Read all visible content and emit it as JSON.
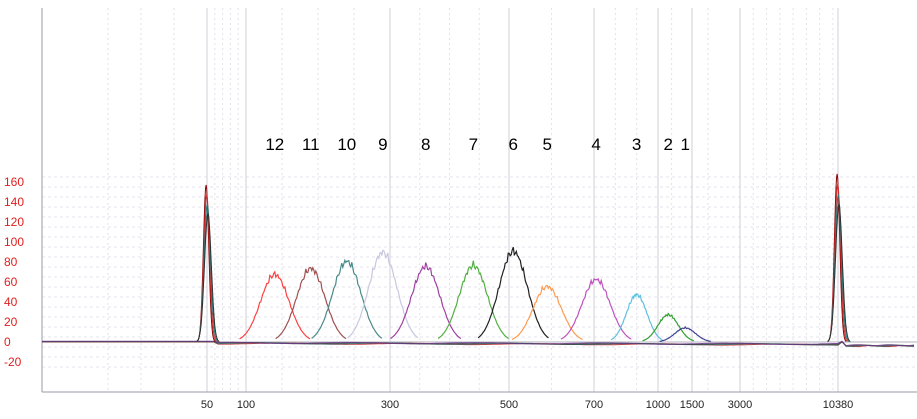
{
  "chart_data": {
    "type": "line",
    "title": "",
    "xlabel": "",
    "ylabel": "",
    "ylim": [
      -25,
      170
    ],
    "xlim": [
      0,
      10600
    ],
    "x_scale": "nonlinear",
    "grid": true,
    "y_ticks": [
      -20,
      0,
      20,
      40,
      60,
      80,
      100,
      120,
      140,
      160
    ],
    "x_ticks": [
      50,
      100,
      300,
      500,
      700,
      1000,
      1500,
      3000,
      10380
    ],
    "markers": [
      {
        "x": 50,
        "height": 157,
        "color": "#8b0000"
      },
      {
        "x": 10380,
        "height": 168,
        "color": "#8b0000"
      }
    ],
    "peak_labels": [
      "12",
      "11",
      "10",
      "9",
      "8",
      "7",
      "6",
      "5",
      "4",
      "3",
      "2",
      "1"
    ],
    "series": [
      {
        "label": "12",
        "color": "#ff4040",
        "center_bp": 140,
        "height": 67
      },
      {
        "label": "11",
        "color": "#a05050",
        "center_bp": 190,
        "height": 73
      },
      {
        "label": "10",
        "color": "#4a8a8a",
        "center_bp": 240,
        "height": 80
      },
      {
        "label": "9",
        "color": "#c8c8e0",
        "center_bp": 290,
        "height": 89
      },
      {
        "label": "8",
        "color": "#a040a0",
        "center_bp": 360,
        "height": 75
      },
      {
        "label": "7",
        "color": "#50b040",
        "center_bp": 440,
        "height": 76
      },
      {
        "label": "6",
        "color": "#202020",
        "center_bp": 510,
        "height": 90
      },
      {
        "label": "5",
        "color": "#ff9a50",
        "center_bp": 590,
        "height": 55
      },
      {
        "label": "4",
        "color": "#c050c0",
        "center_bp": 710,
        "height": 62
      },
      {
        "label": "3",
        "color": "#60c0e0",
        "center_bp": 900,
        "height": 47
      },
      {
        "label": "2",
        "color": "#30a030",
        "center_bp": 1150,
        "height": 27
      },
      {
        "label": "1",
        "color": "#404090",
        "center_bp": 1400,
        "height": 14
      }
    ]
  }
}
